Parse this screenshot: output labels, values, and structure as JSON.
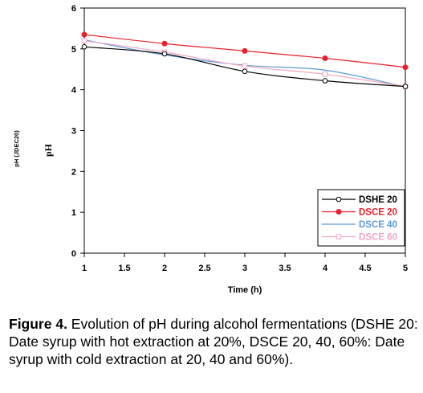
{
  "chart_data": {
    "type": "line",
    "xlabel": "Time (h)",
    "ylabel": "pH",
    "ylabel_small": "pH (JDEC20)",
    "xlim": [
      1,
      5
    ],
    "ylim": [
      0,
      6
    ],
    "x_ticks": [
      "1",
      "1.5",
      "2",
      "2.5",
      "3",
      "3.5",
      "4",
      "4.5",
      "5"
    ],
    "y_ticks": [
      "0",
      "1",
      "2",
      "3",
      "4",
      "5",
      "6"
    ],
    "grid": false,
    "legend_position": "bottom-right",
    "x": [
      1,
      2,
      3,
      4,
      5
    ],
    "series": [
      {
        "name": "DSHE 20",
        "values": [
          5.05,
          4.88,
          4.45,
          4.22,
          4.08
        ],
        "color": "#000000",
        "marker": "open-circle"
      },
      {
        "name": "DSCE 20",
        "values": [
          5.35,
          5.13,
          4.95,
          4.77,
          4.55
        ],
        "color": "#e8202a",
        "marker": "filled-circle"
      },
      {
        "name": "DSCE 40",
        "values": [
          5.22,
          4.85,
          4.6,
          4.48,
          4.07
        ],
        "color": "#5b9bd5",
        "marker": "none"
      },
      {
        "name": "DSCE 60",
        "values": [
          5.2,
          4.92,
          4.58,
          4.38,
          4.08
        ],
        "color": "#f2a6c6",
        "marker": "square"
      }
    ]
  },
  "caption": {
    "label": "Figure 4.",
    "text": " Evolution of pH during alcohol fermentations (DSHE 20: Date syrup with hot extraction at 20%, DSCE 20, 40, 60%: Date syrup with cold extraction at 20, 40 and 60%)."
  }
}
